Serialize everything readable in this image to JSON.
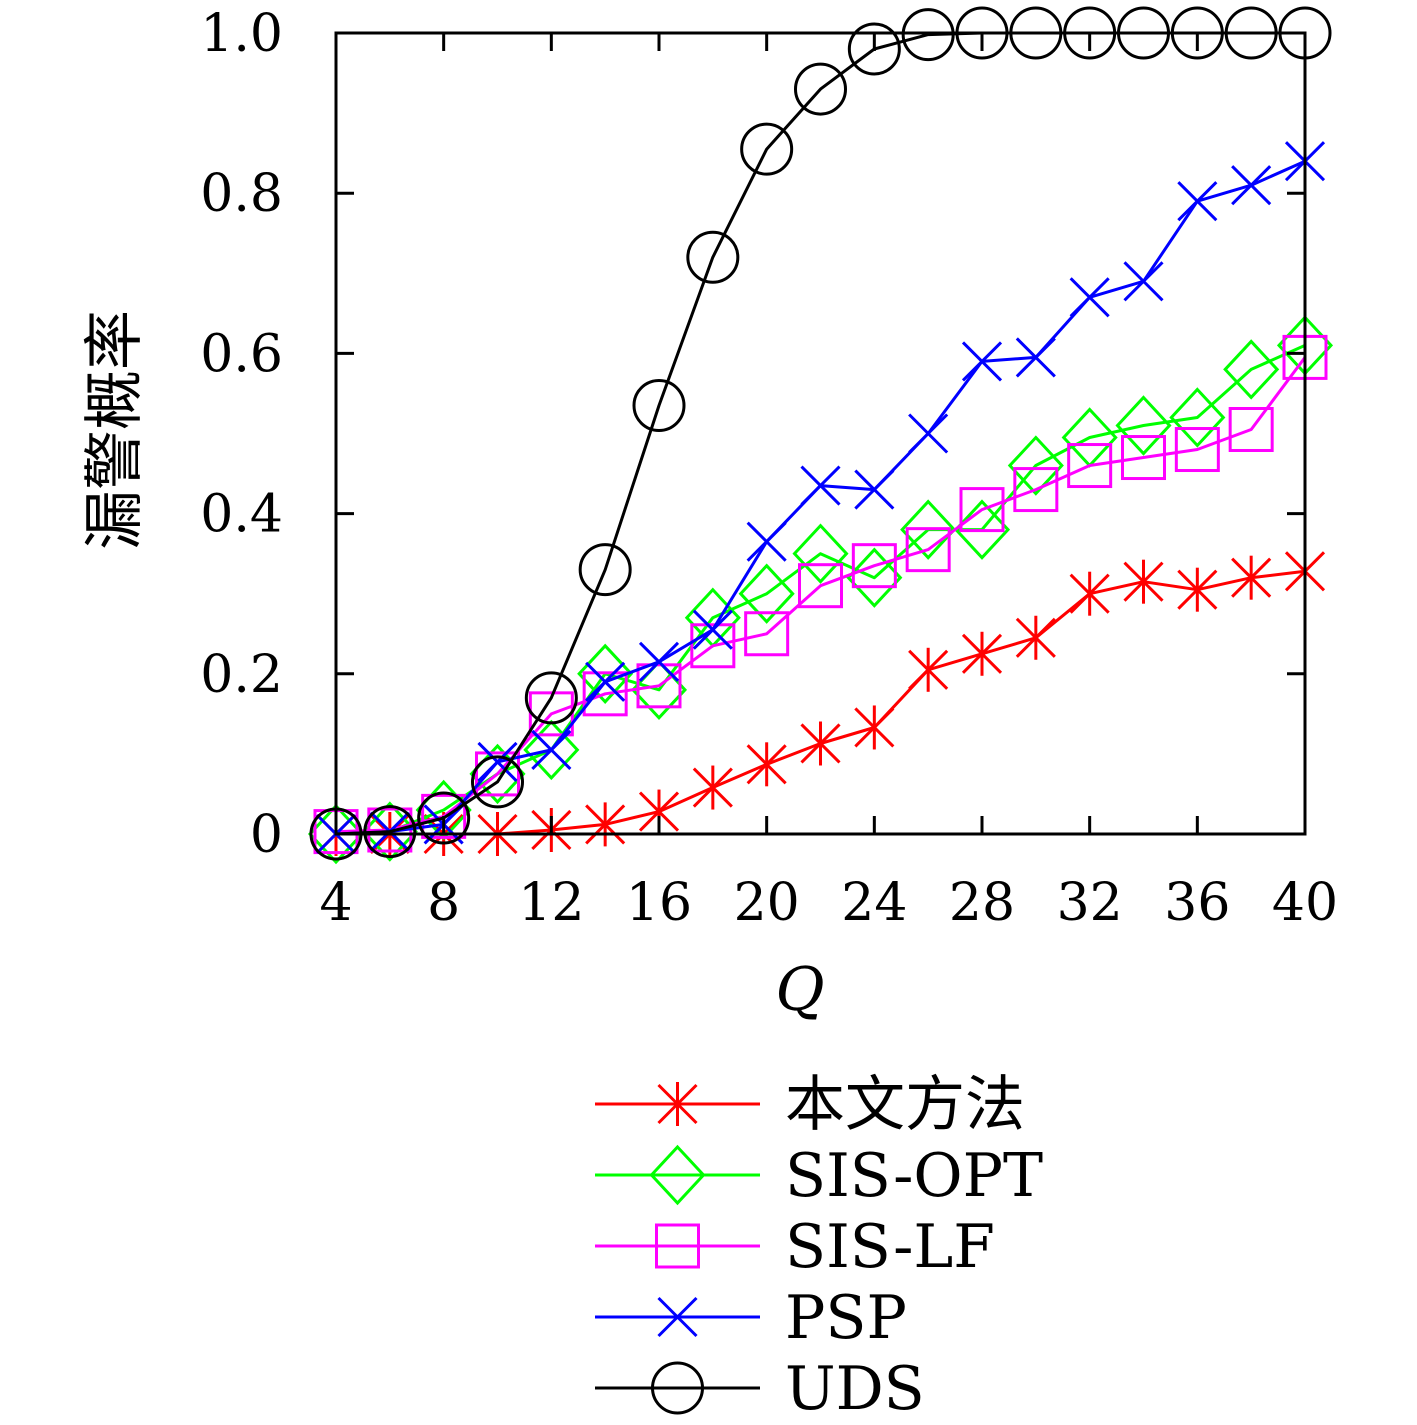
{
  "chart_data": {
    "type": "line",
    "xlabel": "Q",
    "ylabel": "漏警概率",
    "xlim": [
      4,
      40
    ],
    "ylim": [
      0,
      1.0
    ],
    "xticks": [
      4,
      8,
      12,
      16,
      20,
      24,
      28,
      32,
      36,
      40
    ],
    "xtick_labels": [
      "4",
      "8",
      "12",
      "16",
      "20",
      "24",
      "28",
      "32",
      "36",
      "40"
    ],
    "yticks": [
      0,
      0.2,
      0.4,
      0.6,
      0.8,
      1.0
    ],
    "ytick_labels": [
      "0",
      "0.2",
      "0.4",
      "0.6",
      "0.8",
      "1.0"
    ],
    "grid": false,
    "legend_position": "bottom",
    "x": [
      4,
      6,
      8,
      10,
      12,
      14,
      16,
      18,
      20,
      22,
      24,
      26,
      28,
      30,
      32,
      34,
      36,
      38,
      40
    ],
    "series": [
      {
        "name": "本文方法",
        "color": "#ff0000",
        "marker": "asterisk",
        "values": [
          0.0,
          0.0,
          0.0,
          0.0,
          0.005,
          0.012,
          0.028,
          0.058,
          0.087,
          0.113,
          0.133,
          0.205,
          0.225,
          0.245,
          0.3,
          0.315,
          0.305,
          0.32,
          0.328
        ]
      },
      {
        "name": "SIS-OPT",
        "color": "#00ff00",
        "marker": "diamond",
        "values": [
          0.0,
          0.003,
          0.03,
          0.075,
          0.105,
          0.2,
          0.18,
          0.27,
          0.3,
          0.35,
          0.32,
          0.38,
          0.38,
          0.46,
          0.495,
          0.51,
          0.52,
          0.58,
          0.61
        ]
      },
      {
        "name": "SIS-LF",
        "color": "#ff00ff",
        "marker": "square",
        "values": [
          0.003,
          0.005,
          0.022,
          0.075,
          0.15,
          0.175,
          0.185,
          0.235,
          0.25,
          0.31,
          0.335,
          0.355,
          0.405,
          0.43,
          0.46,
          0.47,
          0.48,
          0.505,
          0.595
        ]
      },
      {
        "name": "PSP",
        "color": "#0000ff",
        "marker": "x",
        "values": [
          0.0,
          0.003,
          0.012,
          0.09,
          0.105,
          0.19,
          0.215,
          0.255,
          0.365,
          0.435,
          0.43,
          0.5,
          0.59,
          0.595,
          0.67,
          0.69,
          0.79,
          0.81,
          0.84
        ]
      },
      {
        "name": "UDS",
        "color": "#000000",
        "marker": "circle",
        "values": [
          0.0,
          0.003,
          0.02,
          0.065,
          0.17,
          0.33,
          0.535,
          0.72,
          0.855,
          0.93,
          0.98,
          0.998,
          1.0,
          1.0,
          1.0,
          1.0,
          1.0,
          1.0,
          1.0
        ]
      }
    ]
  }
}
